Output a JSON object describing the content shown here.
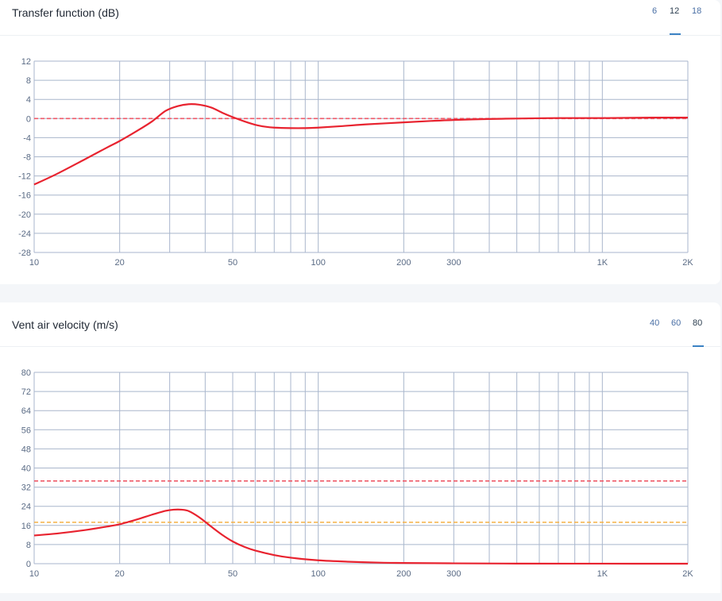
{
  "colors": {
    "grid": "#a9b6cc",
    "curve": "#e8232f",
    "ref_red": "#ef5a68",
    "ref_orange": "#f5b046",
    "accent": "#3b82c4"
  },
  "panels": [
    {
      "title": "Transfer function (dB)",
      "zoom_options": [
        "6",
        "12",
        "18"
      ],
      "zoom_active": "12"
    },
    {
      "title": "Vent air velocity (m/s)",
      "zoom_options": [
        "40",
        "60",
        "80"
      ],
      "zoom_active": "80"
    }
  ],
  "chart_data": [
    {
      "type": "line",
      "title": "Transfer function (dB)",
      "x_scale": "log",
      "xlim": [
        10,
        2000
      ],
      "ylim": [
        -28,
        12
      ],
      "x_ticks": [
        10,
        20,
        50,
        100,
        200,
        300,
        1000,
        2000
      ],
      "x_tick_labels": [
        "10",
        "20",
        "50",
        "100",
        "200",
        "300",
        "1K",
        "2K"
      ],
      "y_ticks": [
        12,
        8,
        4,
        0,
        -4,
        -8,
        -12,
        -16,
        -20,
        -24,
        -28
      ],
      "y_tick_labels": [
        "12",
        "8",
        "4",
        "0",
        "-4",
        "-8",
        "-12",
        "-16",
        "-20",
        "-24",
        "-28"
      ],
      "grid": true,
      "reference_lines": [
        {
          "y": 0,
          "style": "dashed",
          "color": "#ef5a68"
        }
      ],
      "series": [
        {
          "x": [
            10,
            12,
            15,
            18,
            20,
            23,
            26,
            29,
            32,
            35,
            38,
            42,
            46,
            50,
            55,
            60,
            65,
            70,
            80,
            90,
            100,
            120,
            150,
            200,
            250,
            300,
            400,
            500,
            700,
            1000,
            1500,
            2000
          ],
          "y": [
            -13.8,
            -11.6,
            -8.6,
            -6.1,
            -4.7,
            -2.6,
            -0.6,
            1.6,
            2.6,
            3.0,
            2.9,
            2.3,
            1.2,
            0.3,
            -0.6,
            -1.3,
            -1.7,
            -1.9,
            -2.0,
            -2.0,
            -1.9,
            -1.6,
            -1.2,
            -0.8,
            -0.5,
            -0.3,
            -0.1,
            0.0,
            0.1,
            0.1,
            0.2,
            0.2
          ]
        }
      ]
    },
    {
      "type": "line",
      "title": "Vent air velocity (m/s)",
      "x_scale": "log",
      "xlim": [
        10,
        2000
      ],
      "ylim": [
        0,
        80
      ],
      "x_ticks": [
        10,
        20,
        50,
        100,
        200,
        300,
        1000,
        2000
      ],
      "x_tick_labels": [
        "10",
        "20",
        "50",
        "100",
        "200",
        "300",
        "1K",
        "2K"
      ],
      "y_ticks": [
        80,
        72,
        64,
        56,
        48,
        40,
        32,
        24,
        16,
        8,
        0
      ],
      "y_tick_labels": [
        "80",
        "72",
        "64",
        "56",
        "48",
        "40",
        "32",
        "24",
        "16",
        "8",
        "0"
      ],
      "grid": true,
      "reference_lines": [
        {
          "y": 34.6,
          "style": "dashed",
          "color": "#ef5a68"
        },
        {
          "y": 17.3,
          "style": "dashed",
          "color": "#f5b046"
        }
      ],
      "series": [
        {
          "x": [
            10,
            12,
            15,
            18,
            20,
            23,
            26,
            29,
            31,
            33,
            35,
            38,
            42,
            46,
            50,
            55,
            60,
            70,
            80,
            100,
            130,
            170,
            200,
            300,
            500,
            1000,
            2000
          ],
          "y": [
            11.8,
            12.6,
            14.0,
            15.5,
            16.5,
            18.5,
            20.5,
            22.1,
            22.6,
            22.6,
            22.0,
            19.5,
            15.5,
            12.0,
            9.3,
            7.0,
            5.5,
            3.6,
            2.5,
            1.4,
            0.8,
            0.4,
            0.3,
            0.15,
            0.05,
            0.02,
            0.0
          ]
        }
      ]
    }
  ]
}
